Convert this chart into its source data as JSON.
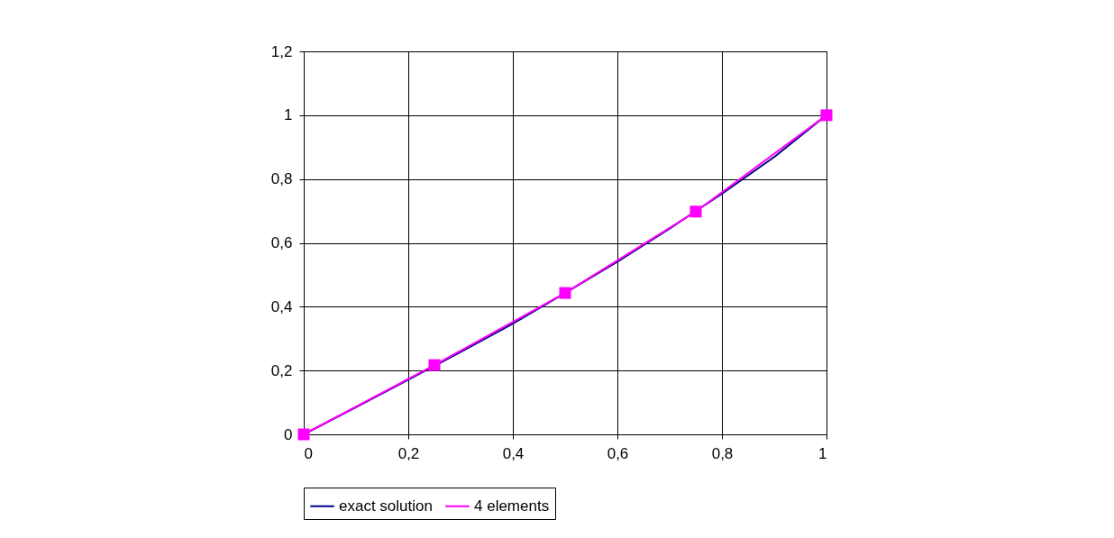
{
  "chart_data": {
    "type": "line",
    "xlim": [
      0,
      1
    ],
    "ylim": [
      0,
      1.2
    ],
    "xticks": [
      0,
      {
        "value": 0.2,
        "label": "0,2"
      },
      {
        "value": 0.4,
        "label": "0,4"
      },
      {
        "value": 0.6,
        "label": "0,6"
      },
      {
        "value": 0.8,
        "label": "0,8"
      },
      1
    ],
    "yticks": [
      0,
      {
        "value": 0.2,
        "label": "0,2"
      },
      {
        "value": 0.4,
        "label": "0,4"
      },
      {
        "value": 0.6,
        "label": "0,6"
      },
      {
        "value": 0.8,
        "label": "0,8"
      },
      1,
      {
        "value": 1.2,
        "label": "1,2"
      }
    ],
    "grid": true,
    "legend": "bottom",
    "series": [
      {
        "name": "exact solution",
        "color": "#000080",
        "marker": "none",
        "x": [
          0,
          0.1,
          0.2,
          0.3,
          0.4,
          0.5,
          0.6,
          0.7,
          0.8,
          0.9,
          1
        ],
        "values": [
          0,
          0.085,
          0.171,
          0.258,
          0.347,
          0.443,
          0.541,
          0.645,
          0.754,
          0.869,
          1
        ]
      },
      {
        "name": "4 elements",
        "color": "#ff00ff",
        "marker": "square",
        "x": [
          0,
          0.25,
          0.5,
          0.75,
          1
        ],
        "values": [
          0,
          0.217,
          0.443,
          0.698,
          1
        ]
      }
    ]
  }
}
